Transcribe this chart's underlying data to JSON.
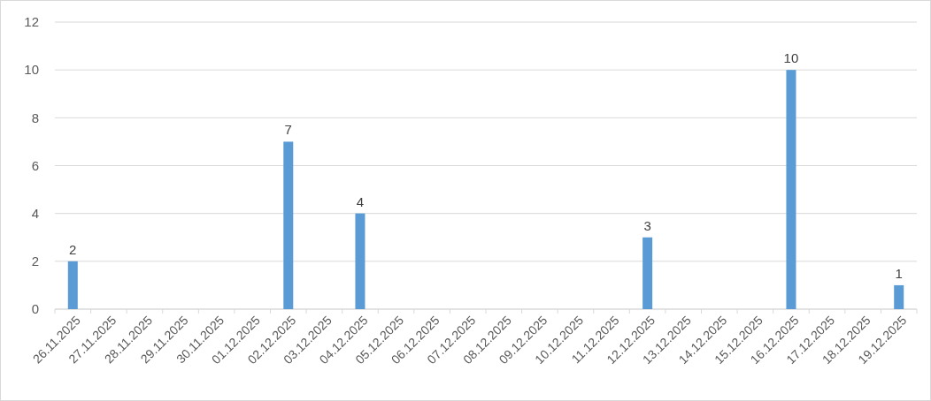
{
  "chart_data": {
    "type": "bar",
    "categories": [
      "26.11.2025",
      "27.11.2025",
      "28.11.2025",
      "29.11.2025",
      "30.11.2025",
      "01.12.2025",
      "02.12.2025",
      "03.12.2025",
      "04.12.2025",
      "05.12.2025",
      "06.12.2025",
      "07.12.2025",
      "08.12.2025",
      "09.12.2025",
      "10.12.2025",
      "11.12.2025",
      "12.12.2025",
      "13.12.2025",
      "14.12.2025",
      "15.12.2025",
      "16.12.2025",
      "17.12.2025",
      "18.12.2025",
      "19.12.2025"
    ],
    "values": [
      2,
      null,
      null,
      null,
      null,
      null,
      7,
      null,
      4,
      null,
      null,
      null,
      null,
      null,
      null,
      null,
      3,
      null,
      null,
      null,
      10,
      null,
      null,
      1
    ],
    "color": "#5b9bd5",
    "ylim": [
      0,
      12
    ],
    "yticks": [
      0,
      2,
      4,
      6,
      8,
      10,
      12
    ],
    "grid": "y",
    "data_labels": true
  }
}
